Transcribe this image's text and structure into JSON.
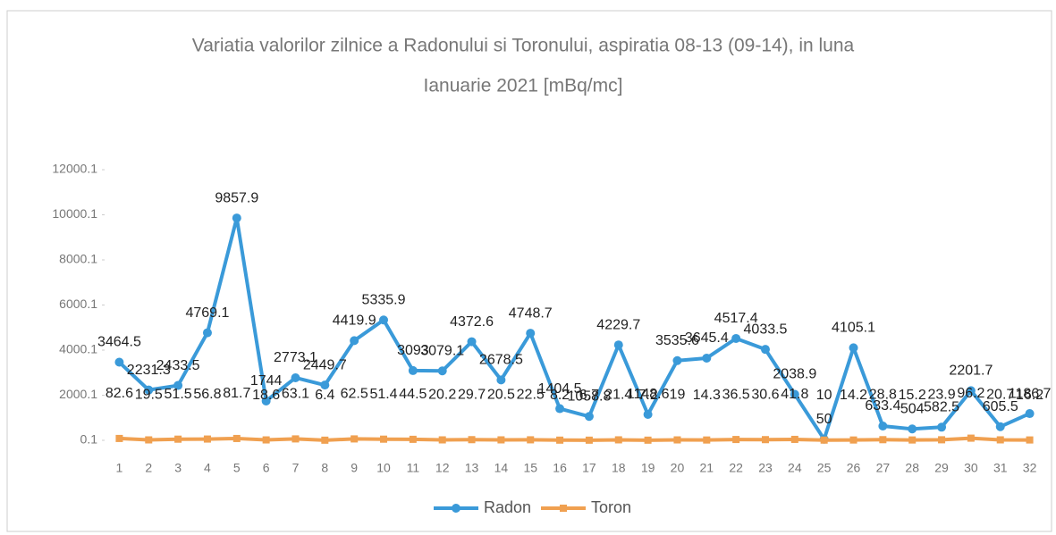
{
  "chart_data": {
    "type": "line",
    "title": [
      "Variatia valorilor zilnice a Radonului si Toronului, aspiratia 08-13 (09-14),  in luna",
      "Ianuarie 2021 [mBq/mc]"
    ],
    "categories": [
      "1",
      "2",
      "3",
      "4",
      "5",
      "6",
      "7",
      "8",
      "9",
      "10",
      "11",
      "12",
      "13",
      "14",
      "15",
      "16",
      "17",
      "18",
      "19",
      "20",
      "21",
      "22",
      "23",
      "24",
      "25",
      "26",
      "27",
      "28",
      "29",
      "30",
      "31",
      "32"
    ],
    "series": [
      {
        "name": "Radon",
        "color": "#3a9ad9",
        "values": [
          3464.5,
          2231.3,
          2433.5,
          4769.1,
          9857.9,
          1744.0,
          2773.1,
          2449.7,
          4419.9,
          5335.9,
          3093.0,
          3079.1,
          4372.6,
          2678.5,
          4748.7,
          1404.5,
          1058.8,
          4229.7,
          1148.6,
          3535.6,
          3645.4,
          4517.4,
          4033.5,
          2038.9,
          50.0,
          4105.1,
          633.4,
          504.0,
          582.5,
          2201.7,
          605.5,
          1186.7
        ]
      },
      {
        "name": "Toron",
        "color": "#f0a050",
        "values": [
          82.6,
          19.5,
          51.5,
          56.8,
          81.7,
          18.6,
          63.1,
          6.4,
          62.5,
          51.4,
          44.5,
          20.2,
          29.7,
          20.5,
          22.5,
          8.2,
          6.7,
          21.4,
          7.2,
          19.0,
          14.3,
          36.5,
          30.6,
          41.8,
          10.0,
          14.2,
          28.8,
          15.2,
          23.9,
          96.2,
          20.7,
          16.2
        ]
      }
    ],
    "ylim": [
      0.1,
      12000.1
    ],
    "yticks": [
      0.1,
      2000.1,
      4000.1,
      6000.1,
      8000.1,
      10000.1,
      12000.1
    ],
    "grid": false,
    "legend": "bottom"
  }
}
